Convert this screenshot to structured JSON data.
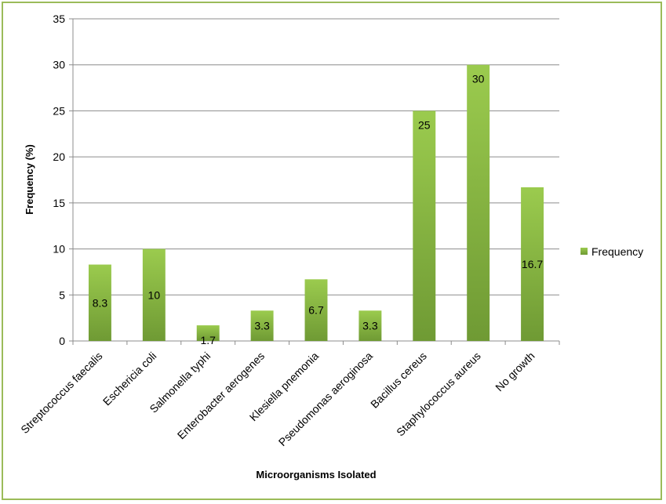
{
  "chart_data": {
    "type": "bar",
    "categories": [
      "Streptococcus faecalis",
      "Eschericia coli",
      "Salmonella typhi",
      "Enterobacter aerogenes",
      "Klesiella pnemonia",
      "Pseudomonas aeroginosa",
      "Bacillus cereus",
      "Staphylococcus aureus",
      "No growth"
    ],
    "series": [
      {
        "name": "Frequency",
        "values": [
          8.3,
          10,
          1.7,
          3.3,
          6.7,
          3.3,
          25,
          30,
          16.7
        ]
      }
    ],
    "data_labels": [
      "8.3",
      "10",
      "1.7",
      "3.3",
      "6.7",
      "3.3",
      "25",
      "30",
      "16.7"
    ],
    "xlabel": "Microorganisms  Isolated",
    "ylabel": "Frequency (%)",
    "ylim": [
      0,
      35
    ],
    "yticks": [
      0,
      5,
      10,
      15,
      20,
      25,
      30,
      35
    ],
    "grid": true,
    "legend_position": "right",
    "colors": {
      "bar_top": "#9bcb4e",
      "bar_bottom": "#6f9a34",
      "grid": "#8c8c8c",
      "border": "#9bbb59"
    }
  }
}
